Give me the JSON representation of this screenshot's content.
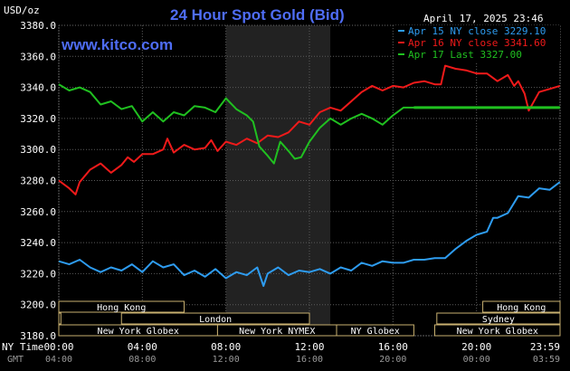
{
  "header": {
    "unit": "USD/oz",
    "title": "24 Hour Spot Gold (Bid)",
    "timestamp": "April 17, 2025 23:46",
    "site": "www.kitco.com"
  },
  "axis": {
    "ny_time_label": "NY Time",
    "gmt_label": "GMT",
    "ny_ticks": [
      "00:00",
      "04:00",
      "08:00",
      "12:00",
      "16:00",
      "20:00",
      "23:59"
    ],
    "gmt_ticks": [
      "04:00",
      "08:00",
      "12:00",
      "16:00",
      "20:00",
      "00:00",
      "03:59"
    ]
  },
  "sessions": [
    {
      "label": "Hong Kong",
      "start": 0.0,
      "end": 6.0,
      "row": 0
    },
    {
      "label": "Hong Kong",
      "start": 20.3,
      "end": 24.0,
      "row": 0
    },
    {
      "label": "London",
      "start": 3.0,
      "end": 12.0,
      "row": 1
    },
    {
      "label": "Sydney",
      "start": 18.1,
      "end": 24.0,
      "row": 1
    },
    {
      "label": "",
      "start": 0.0,
      "end": 0.1,
      "row": 1
    },
    {
      "label": "New York Globex",
      "start": 0.0,
      "end": 7.6,
      "row": 2
    },
    {
      "label": "New York NYMEX",
      "start": 7.6,
      "end": 13.3,
      "row": 2
    },
    {
      "label": "NY Globex",
      "start": 13.3,
      "end": 17.0,
      "row": 2
    },
    {
      "label": "New York Globex",
      "start": 18.0,
      "end": 24.0,
      "row": 2
    }
  ],
  "colors": {
    "background": "#000000",
    "grid": "#5a5a5a",
    "nymex_shade": "#222222",
    "apr15": "#2e9cf0",
    "apr16": "#f01a1a",
    "apr17": "#20c020",
    "session_box": "#c8b070"
  },
  "chart_data": {
    "type": "line",
    "title": "24 Hour Spot Gold (Bid)",
    "ylabel": "USD/oz",
    "xlabel": "NY Time",
    "x_unit": "hours (NY Time)",
    "xlim": [
      0,
      24
    ],
    "ylim": [
      3180,
      3380
    ],
    "yticks": [
      3180,
      3200,
      3220,
      3240,
      3260,
      3280,
      3300,
      3320,
      3340,
      3360,
      3380
    ],
    "grid": true,
    "legend_position": "top-right",
    "series": [
      {
        "name": "Apr 15 NY close 3229.10",
        "color": "#2e9cf0",
        "x": [
          0,
          0.5,
          1,
          1.5,
          2,
          2.5,
          3,
          3.5,
          4,
          4.5,
          5,
          5.5,
          6,
          6.5,
          7,
          7.5,
          8,
          8.5,
          9,
          9.5,
          9.8,
          10,
          10.5,
          11,
          11.5,
          12,
          12.5,
          13,
          13.5,
          14,
          14.5,
          15,
          15.5,
          16,
          16.5,
          17,
          17.5,
          18,
          18.5,
          19,
          19.5,
          20,
          20.5,
          20.8,
          21,
          21.5,
          22,
          22.5,
          23,
          23.5,
          23.99
        ],
        "y": [
          3228,
          3226,
          3229,
          3224,
          3221,
          3224,
          3222,
          3226,
          3221,
          3228,
          3224,
          3226,
          3219,
          3222,
          3218,
          3223,
          3217,
          3221,
          3219,
          3224,
          3212,
          3220,
          3224,
          3219,
          3222,
          3221,
          3223,
          3220,
          3224,
          3222,
          3227,
          3225,
          3228,
          3227,
          3227,
          3229,
          3229,
          3230,
          3230,
          3236,
          3241,
          3245,
          3247,
          3256,
          3256,
          3259,
          3270,
          3269,
          3275,
          3274,
          3279
        ]
      },
      {
        "name": "Apr 16 NY close 3341.60",
        "color": "#f01a1a",
        "x": [
          0,
          0.2,
          0.5,
          0.8,
          1,
          1.5,
          2,
          2.5,
          3,
          3.3,
          3.6,
          4,
          4.5,
          5,
          5.2,
          5.5,
          6,
          6.5,
          7,
          7.3,
          7.6,
          8,
          8.5,
          9,
          9.5,
          10,
          10.5,
          11,
          11.5,
          12,
          12.5,
          13,
          13.5,
          14,
          14.5,
          15,
          15.5,
          16,
          16.5,
          17,
          17.5,
          18,
          18.3,
          18.5,
          19,
          19.5,
          20,
          20.5,
          21,
          21.5,
          21.8,
          22,
          22.3,
          22.5,
          23,
          23.5,
          23.99
        ],
        "y": [
          3280,
          3278,
          3275,
          3271,
          3279,
          3287,
          3291,
          3285,
          3290,
          3295,
          3292,
          3297,
          3297,
          3300,
          3307,
          3298,
          3303,
          3300,
          3301,
          3306,
          3299,
          3305,
          3303,
          3307,
          3304,
          3309,
          3308,
          3311,
          3318,
          3316,
          3324,
          3327,
          3325,
          3331,
          3337,
          3341,
          3338,
          3341,
          3340,
          3343,
          3344,
          3342,
          3342,
          3354,
          3352,
          3351,
          3349,
          3349,
          3344,
          3348,
          3341,
          3344,
          3336,
          3325,
          3337,
          3339,
          3341
        ]
      },
      {
        "name": "Apr 17 Last 3327.00",
        "color": "#20c020",
        "x": [
          0,
          0.5,
          1,
          1.5,
          2,
          2.5,
          3,
          3.5,
          4,
          4.5,
          5,
          5.5,
          6,
          6.5,
          7,
          7.5,
          8,
          8.5,
          9,
          9.3,
          9.6,
          10,
          10.3,
          10.6,
          11,
          11.3,
          11.6,
          12,
          12.5,
          13,
          13.5,
          14,
          14.5,
          15,
          15.5,
          16,
          16.5,
          17,
          17.5,
          18,
          18.5,
          19,
          19.5,
          20,
          20.5,
          21,
          21.5,
          22,
          22.5,
          23,
          23.99
        ],
        "y": [
          3342,
          3338,
          3340,
          3337,
          3329,
          3331,
          3326,
          3328,
          3318,
          3324,
          3318,
          3324,
          3322,
          3328,
          3327,
          3324,
          3333,
          3326,
          3322,
          3318,
          3302,
          3296,
          3291,
          3305,
          3299,
          3294,
          3295,
          3305,
          3314,
          3320,
          3316,
          3320,
          3323,
          3320,
          3316,
          3322,
          3327,
          3327,
          3327,
          3327,
          3327,
          3327,
          3327,
          3327,
          3327,
          3327,
          3327,
          3327,
          3327,
          3327,
          3327
        ]
      }
    ]
  }
}
